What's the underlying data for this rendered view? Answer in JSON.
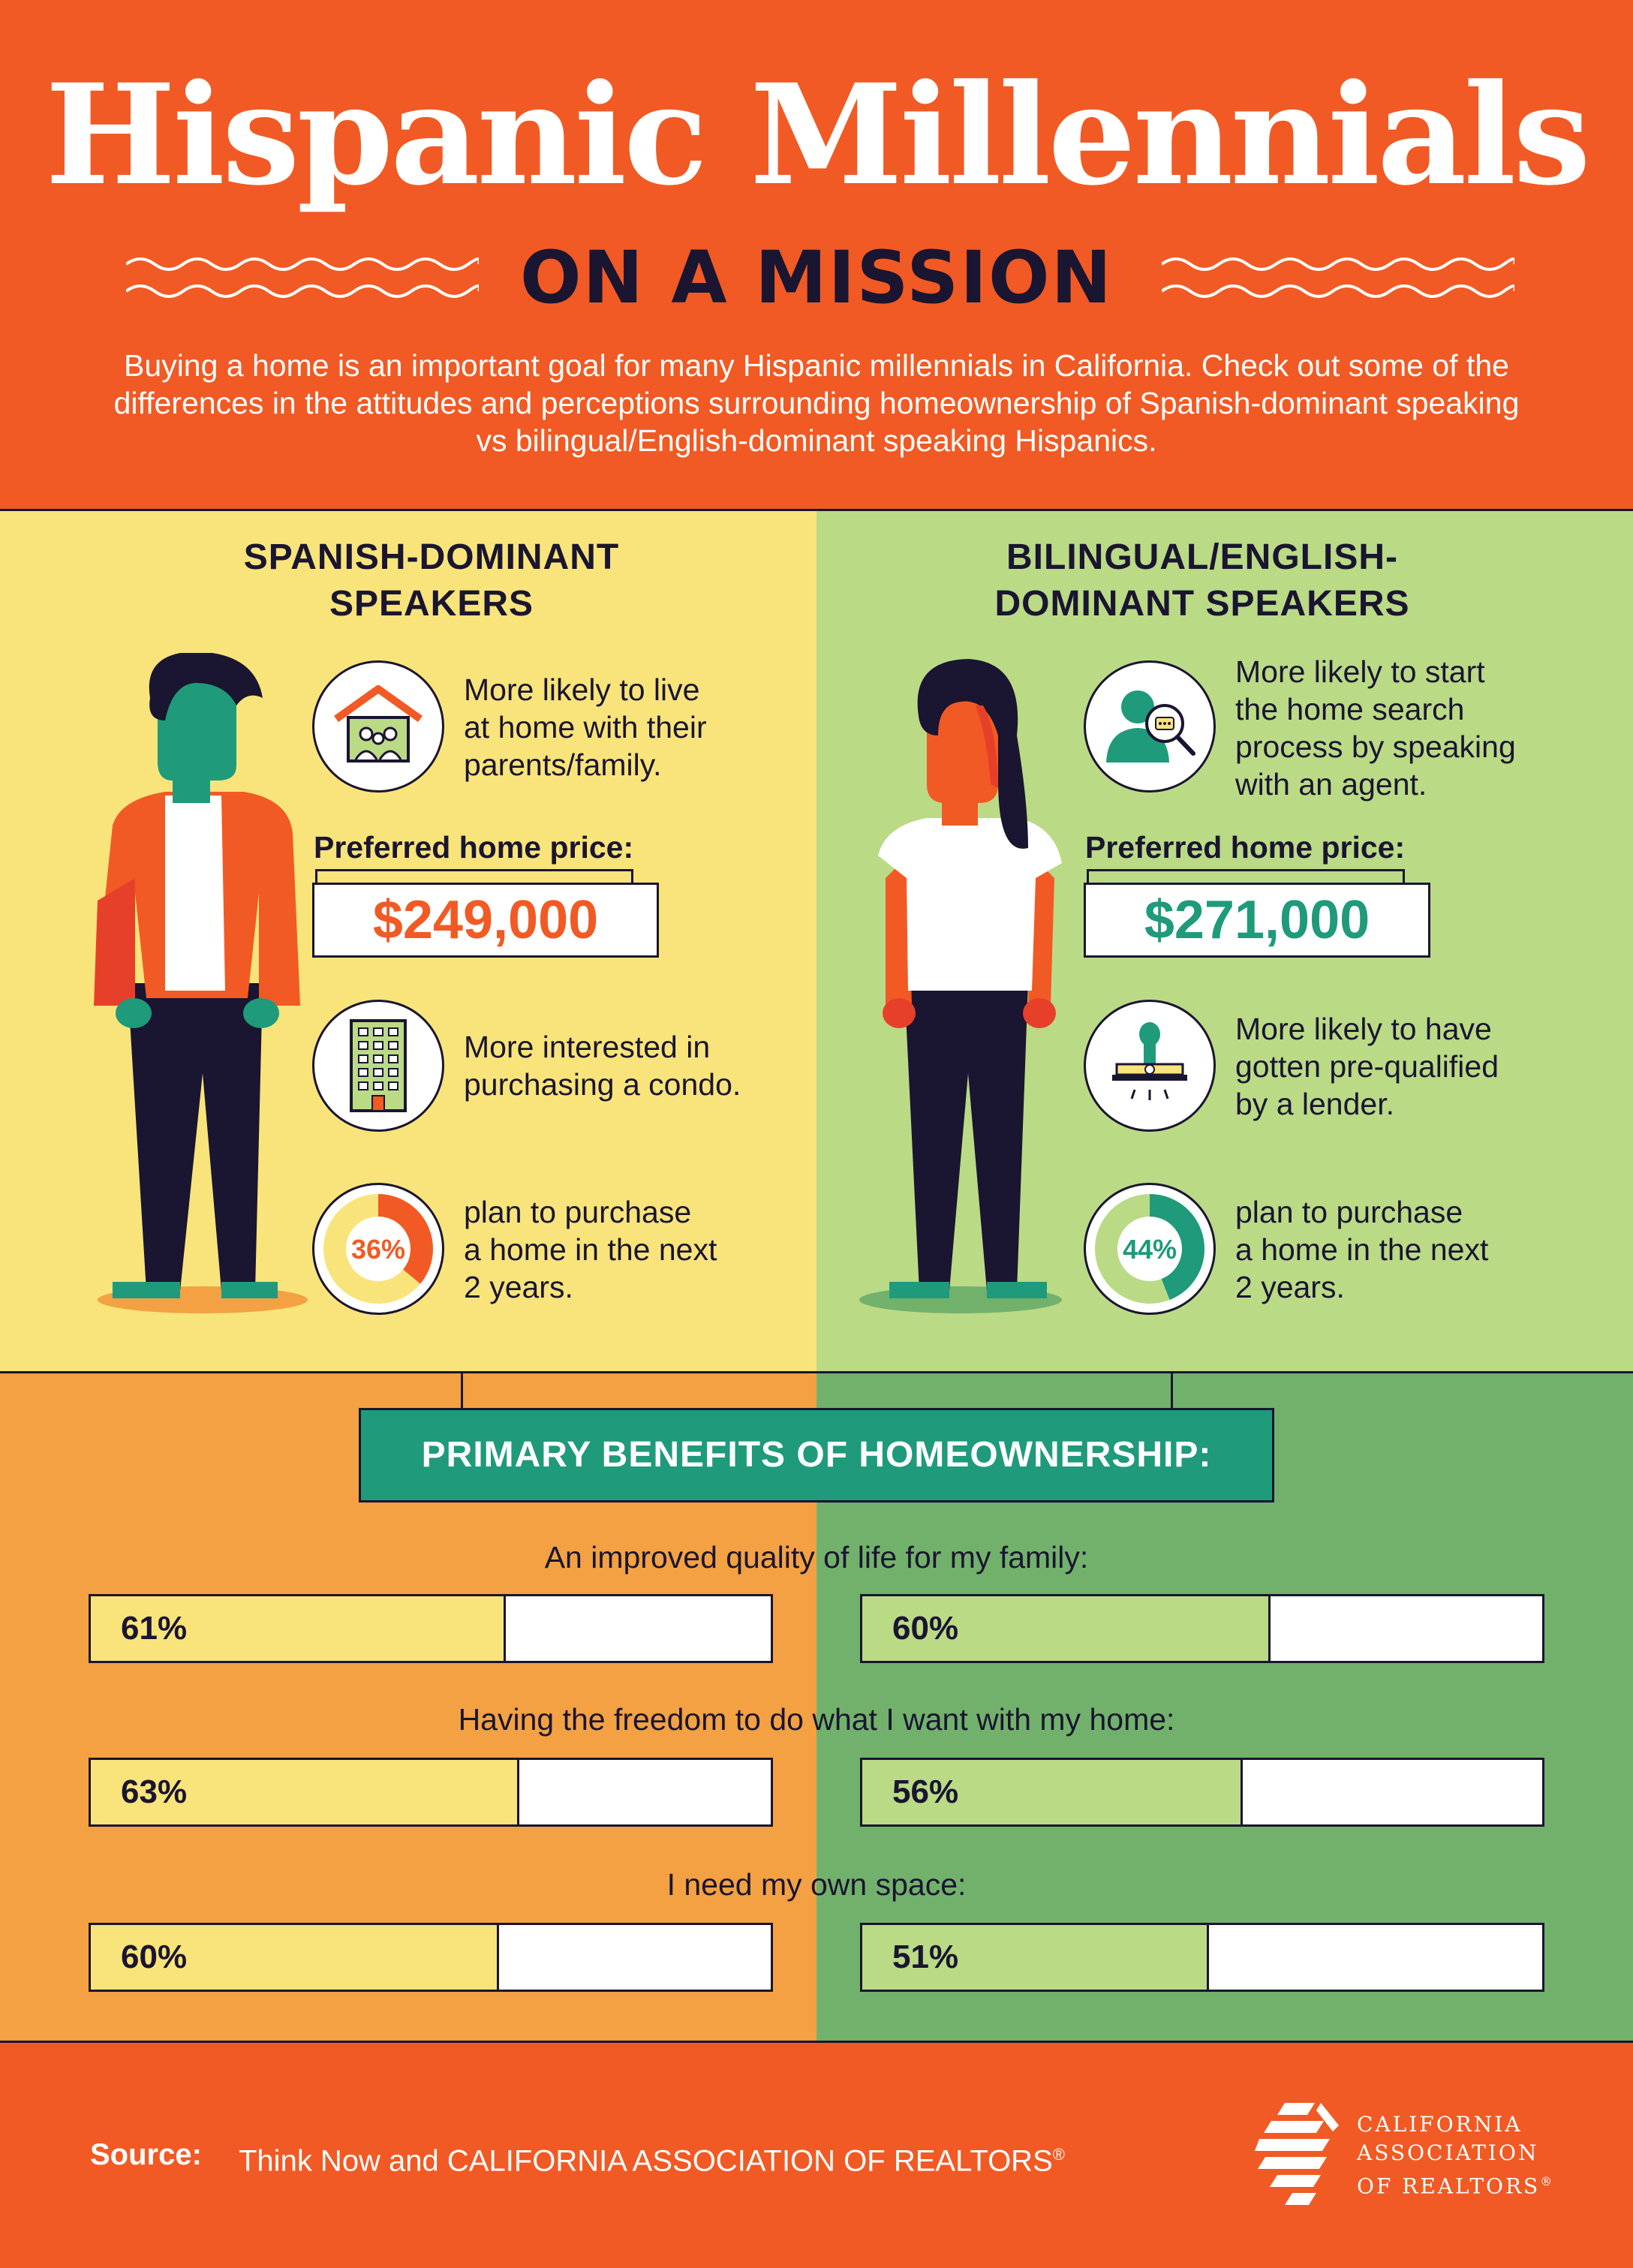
{
  "header": {
    "title": "Hispanic Millennials",
    "subtitle": "ON A MISSION",
    "intro": "Buying a home is an important goal for many Hispanic millennials in California. Check out some of the differences in the attitudes and perceptions surrounding homeownership of Spanish-dominant speaking vs bilingual/English-dominant speaking Hispanics."
  },
  "colors": {
    "orange": "#f15a24",
    "yellow": "#f8e47a",
    "light_green": "#bada86",
    "amber": "#f3a143",
    "green": "#72b16c",
    "teal": "#1f9a7b",
    "navy": "#1a1530"
  },
  "left": {
    "heading_line1": "SPANISH-DOMINANT",
    "heading_line2": "SPEAKERS",
    "fact1_icon": "house-family-icon",
    "fact1_line1": "More likely to live",
    "fact1_line2": "at home with their",
    "fact1_line3": "parents/family.",
    "price_label": "Preferred home price:",
    "price": "$249,000",
    "fact2_icon": "condo-building-icon",
    "fact2_line1": "More interested in",
    "fact2_line2": "purchasing a condo.",
    "donut_value": 36,
    "donut_label": "36%",
    "fact3_line1": "plan to purchase",
    "fact3_line2": "a home in the next",
    "fact3_line3": "2 years."
  },
  "right": {
    "heading_line1": "BILINGUAL/ENGLISH-",
    "heading_line2": "DOMINANT SPEAKERS",
    "fact1_icon": "agent-search-icon",
    "fact1_line1": "More likely to start",
    "fact1_line2": "the home search",
    "fact1_line3": "process by speaking",
    "fact1_line4": "with an agent.",
    "price_label": "Preferred home price:",
    "price": "$271,000",
    "fact2_icon": "approval-stamp-icon",
    "fact2_line1": "More likely to have",
    "fact2_line2": "gotten pre-qualified",
    "fact2_line3": "by a lender.",
    "donut_value": 44,
    "donut_label": "44%",
    "fact3_line1": "plan to purchase",
    "fact3_line2": "a home in the next",
    "fact3_line3": "2 years."
  },
  "benefits": {
    "title": "PRIMARY BENEFITS OF HOMEOWNERSHIP:",
    "items": [
      {
        "question": "An improved quality of life for my family:",
        "spanish_value": 61,
        "spanish_label": "61%",
        "bilingual_value": 60,
        "bilingual_label": "60%"
      },
      {
        "question": "Having the freedom to do what I want with my home:",
        "spanish_value": 63,
        "spanish_label": "63%",
        "bilingual_value": 56,
        "bilingual_label": "56%"
      },
      {
        "question": "I need my own space:",
        "spanish_value": 60,
        "spanish_label": "60%",
        "bilingual_value": 51,
        "bilingual_label": "51%"
      }
    ]
  },
  "footer": {
    "source_label": "Source:",
    "source_text": "Think Now and CALIFORNIA ASSOCIATION OF REALTORS",
    "source_mark": "®",
    "logo_line1": "CALIFORNIA",
    "logo_line2": "ASSOCIATION",
    "logo_line3": "OF REALTORS",
    "logo_mark": "®"
  }
}
